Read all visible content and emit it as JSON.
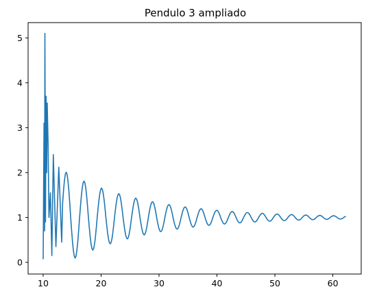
{
  "chart_data": {
    "type": "line",
    "title": "Pendulo 3 ampliado",
    "xlabel": "",
    "ylabel": "",
    "xlim": [
      7.4,
      64.9
    ],
    "ylim": [
      -0.26,
      5.34
    ],
    "x_ticks": [
      10,
      20,
      30,
      40,
      50,
      60
    ],
    "y_ticks": [
      0,
      1,
      2,
      3,
      4,
      5
    ],
    "grid": false,
    "legend": "none",
    "series": [
      {
        "color": "#1f77b4",
        "x_range": [
          10.0,
          62.3
        ],
        "description_points": [
          [
            10.0,
            0.07
          ],
          [
            10.15,
            3.1
          ],
          [
            10.25,
            0.7
          ],
          [
            10.3,
            5.1
          ],
          [
            10.4,
            0.9
          ],
          [
            10.5,
            3.7
          ],
          [
            10.6,
            2.0
          ],
          [
            10.7,
            3.55
          ],
          [
            10.85,
            2.65
          ],
          [
            11.0,
            1.0
          ],
          [
            11.25,
            1.55
          ],
          [
            11.5,
            0.15
          ],
          [
            11.75,
            2.4
          ],
          [
            12.2,
            0.35
          ],
          [
            12.7,
            2.12
          ],
          [
            13.2,
            0.45
          ]
        ],
        "envelope": {
          "center": 1.0,
          "initial_amplitude": 1.12,
          "final_amplitude": 0.035,
          "period_start": 1.55,
          "period_end": 1.16
        }
      }
    ]
  }
}
